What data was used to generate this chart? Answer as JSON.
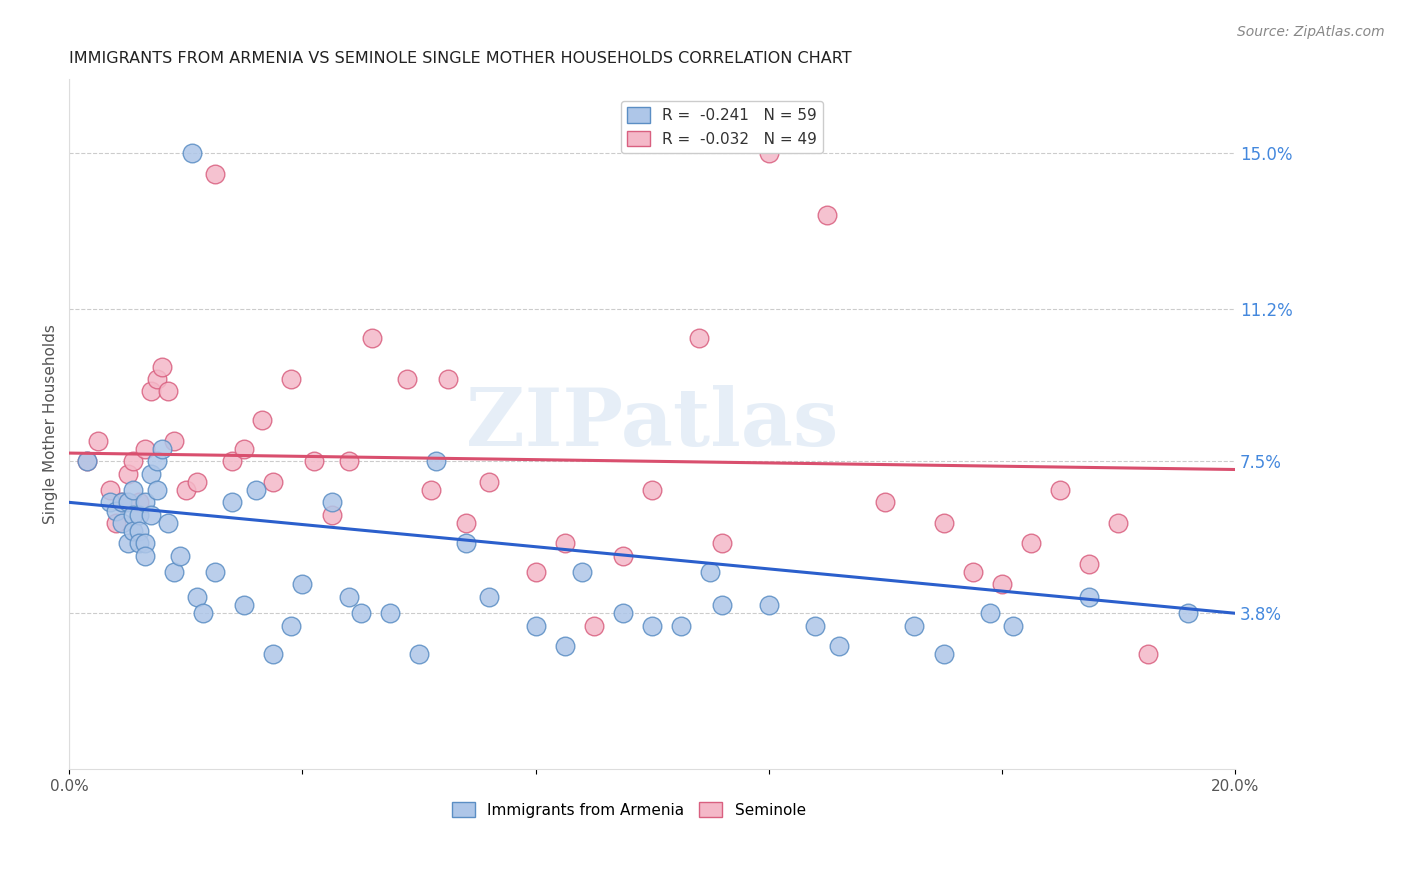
{
  "title": "IMMIGRANTS FROM ARMENIA VS SEMINOLE SINGLE MOTHER HOUSEHOLDS CORRELATION CHART",
  "source": "Source: ZipAtlas.com",
  "ylabel": "Single Mother Households",
  "x_min": 0.0,
  "x_max": 0.2,
  "y_min": 0.0,
  "y_max": 0.168,
  "right_yticks": [
    0.038,
    0.075,
    0.112,
    0.15
  ],
  "right_yticklabels": [
    "3.8%",
    "7.5%",
    "11.2%",
    "15.0%"
  ],
  "x_ticks": [
    0.0,
    0.04,
    0.08,
    0.12,
    0.16,
    0.2
  ],
  "x_ticklabels": [
    "0.0%",
    "",
    "",
    "",
    "",
    "20.0%"
  ],
  "legend1_blue_label": "R =  -0.241   N = 59",
  "legend1_pink_label": "R =  -0.032   N = 49",
  "series1_label": "Immigrants from Armenia",
  "series2_label": "Seminole",
  "series1_color": "#aec6e8",
  "series1_edge_color": "#5b8ec4",
  "series2_color": "#f4b8c8",
  "series2_edge_color": "#d96080",
  "trendline1_color": "#2b5fcc",
  "trendline2_color": "#d94f6e",
  "watermark": "ZIPatlas",
  "blue_x": [
    0.003,
    0.007,
    0.008,
    0.009,
    0.009,
    0.01,
    0.01,
    0.011,
    0.011,
    0.011,
    0.012,
    0.012,
    0.012,
    0.013,
    0.013,
    0.013,
    0.014,
    0.014,
    0.015,
    0.015,
    0.016,
    0.017,
    0.018,
    0.019,
    0.021,
    0.022,
    0.023,
    0.025,
    0.028,
    0.03,
    0.032,
    0.035,
    0.038,
    0.04,
    0.045,
    0.048,
    0.05,
    0.055,
    0.06,
    0.063,
    0.068,
    0.072,
    0.08,
    0.085,
    0.088,
    0.095,
    0.1,
    0.105,
    0.11,
    0.112,
    0.12,
    0.128,
    0.132,
    0.145,
    0.15,
    0.158,
    0.162,
    0.175,
    0.192
  ],
  "blue_y": [
    0.075,
    0.065,
    0.063,
    0.065,
    0.06,
    0.065,
    0.055,
    0.062,
    0.058,
    0.068,
    0.062,
    0.058,
    0.055,
    0.065,
    0.055,
    0.052,
    0.072,
    0.062,
    0.075,
    0.068,
    0.078,
    0.06,
    0.048,
    0.052,
    0.15,
    0.042,
    0.038,
    0.048,
    0.065,
    0.04,
    0.068,
    0.028,
    0.035,
    0.045,
    0.065,
    0.042,
    0.038,
    0.038,
    0.028,
    0.075,
    0.055,
    0.042,
    0.035,
    0.03,
    0.048,
    0.038,
    0.035,
    0.035,
    0.048,
    0.04,
    0.04,
    0.035,
    0.03,
    0.035,
    0.028,
    0.038,
    0.035,
    0.042,
    0.038
  ],
  "pink_x": [
    0.003,
    0.005,
    0.007,
    0.008,
    0.009,
    0.01,
    0.011,
    0.012,
    0.013,
    0.014,
    0.015,
    0.016,
    0.017,
    0.018,
    0.02,
    0.022,
    0.025,
    0.028,
    0.03,
    0.033,
    0.035,
    0.038,
    0.042,
    0.045,
    0.048,
    0.052,
    0.058,
    0.062,
    0.065,
    0.068,
    0.072,
    0.08,
    0.085,
    0.09,
    0.095,
    0.1,
    0.108,
    0.112,
    0.12,
    0.13,
    0.14,
    0.15,
    0.155,
    0.16,
    0.165,
    0.17,
    0.175,
    0.18,
    0.185
  ],
  "pink_y": [
    0.075,
    0.08,
    0.068,
    0.06,
    0.065,
    0.072,
    0.075,
    0.065,
    0.078,
    0.092,
    0.095,
    0.098,
    0.092,
    0.08,
    0.068,
    0.07,
    0.145,
    0.075,
    0.078,
    0.085,
    0.07,
    0.095,
    0.075,
    0.062,
    0.075,
    0.105,
    0.095,
    0.068,
    0.095,
    0.06,
    0.07,
    0.048,
    0.055,
    0.035,
    0.052,
    0.068,
    0.105,
    0.055,
    0.15,
    0.135,
    0.065,
    0.06,
    0.048,
    0.045,
    0.055,
    0.068,
    0.05,
    0.06,
    0.028
  ],
  "trendline1_x": [
    0.0,
    0.2
  ],
  "trendline1_y": [
    0.065,
    0.038
  ],
  "trendline2_x": [
    0.0,
    0.2
  ],
  "trendline2_y": [
    0.077,
    0.073
  ]
}
